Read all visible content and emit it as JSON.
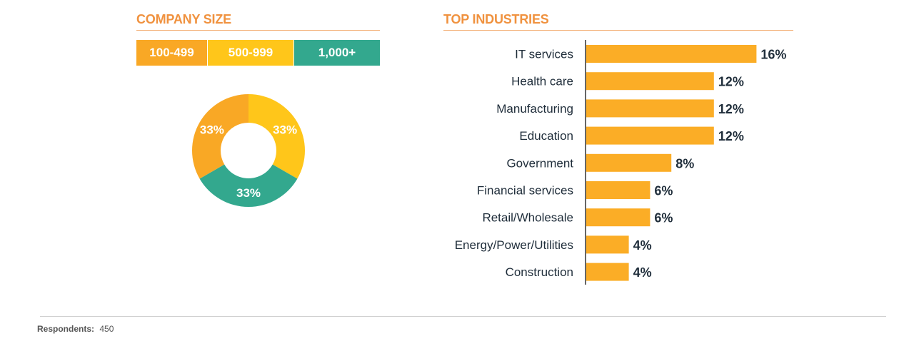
{
  "colors": {
    "title": "#f0923f",
    "orange": "#f9a825",
    "yellow": "#ffc61a",
    "teal": "#33a88e",
    "bar": "#fbad26",
    "text": "#1f2d3a"
  },
  "company_size": {
    "title": "COMPANY SIZE",
    "legend": [
      "100-499",
      "500-999",
      "1,000+"
    ]
  },
  "top_industries": {
    "title": "TOP INDUSTRIES"
  },
  "footer": {
    "label": "Respondents:",
    "value": "450"
  },
  "chart_data": [
    {
      "type": "pie",
      "title": "COMPANY SIZE",
      "categories": [
        "100-499",
        "500-999",
        "1,000+"
      ],
      "values": [
        33,
        33,
        33
      ],
      "labels": [
        "33%",
        "33%",
        "33%"
      ],
      "colors": [
        "#f9a825",
        "#ffc61a",
        "#33a88e"
      ]
    },
    {
      "type": "bar",
      "orientation": "horizontal",
      "title": "TOP INDUSTRIES",
      "categories": [
        "IT services",
        "Health care",
        "Manufacturing",
        "Education",
        "Government",
        "Financial services",
        "Retail/Wholesale",
        "Energy/Power/Utilities",
        "Construction"
      ],
      "values": [
        16,
        12,
        12,
        12,
        8,
        6,
        6,
        4,
        4
      ],
      "labels": [
        "16%",
        "12%",
        "12%",
        "12%",
        "8%",
        "6%",
        "6%",
        "4%",
        "4%"
      ],
      "color": "#fbad26",
      "grid": false
    }
  ]
}
